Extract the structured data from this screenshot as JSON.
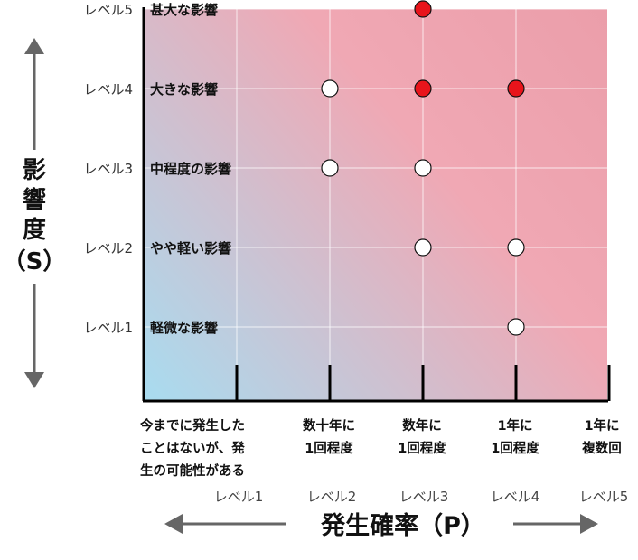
{
  "chart_data": {
    "type": "scatter",
    "y_axis": {
      "title_lines": [
        "影",
        "響",
        "度",
        "（S）"
      ],
      "levels": [
        {
          "level": "レベル5",
          "label": "甚大な影響"
        },
        {
          "level": "レベル4",
          "label": "大きな影響"
        },
        {
          "level": "レベル3",
          "label": "中程度の影響"
        },
        {
          "level": "レベル2",
          "label": "やや軽い影響"
        },
        {
          "level": "レベル1",
          "label": "軽微な影響"
        }
      ]
    },
    "x_axis": {
      "title": "発生確率（P）",
      "levels": [
        "レベル1",
        "レベル2",
        "レベル3",
        "レベル4",
        "レベル5"
      ],
      "categories": [
        [
          "今までに発生した",
          "ことはないが、発",
          "生の可能性がある"
        ],
        [
          "数十年に",
          "1回程度"
        ],
        [
          "数年に",
          "1回程度"
        ],
        [
          "1年に",
          "1回程度"
        ],
        [
          "1年に",
          "複数回"
        ]
      ]
    },
    "gradient": {
      "low_color": "#a8dcf0",
      "high_color": "#f0a2ae"
    },
    "series": [
      {
        "color": "#ffffff",
        "points": [
          {
            "x": 2,
            "y": 4
          },
          {
            "x": 2,
            "y": 3
          },
          {
            "x": 3,
            "y": 3
          },
          {
            "x": 3,
            "y": 2
          },
          {
            "x": 4,
            "y": 2
          },
          {
            "x": 4,
            "y": 1
          }
        ]
      },
      {
        "color": "#e8141b",
        "points": [
          {
            "x": 3,
            "y": 5
          },
          {
            "x": 3,
            "y": 4
          },
          {
            "x": 4,
            "y": 4
          }
        ]
      }
    ]
  }
}
